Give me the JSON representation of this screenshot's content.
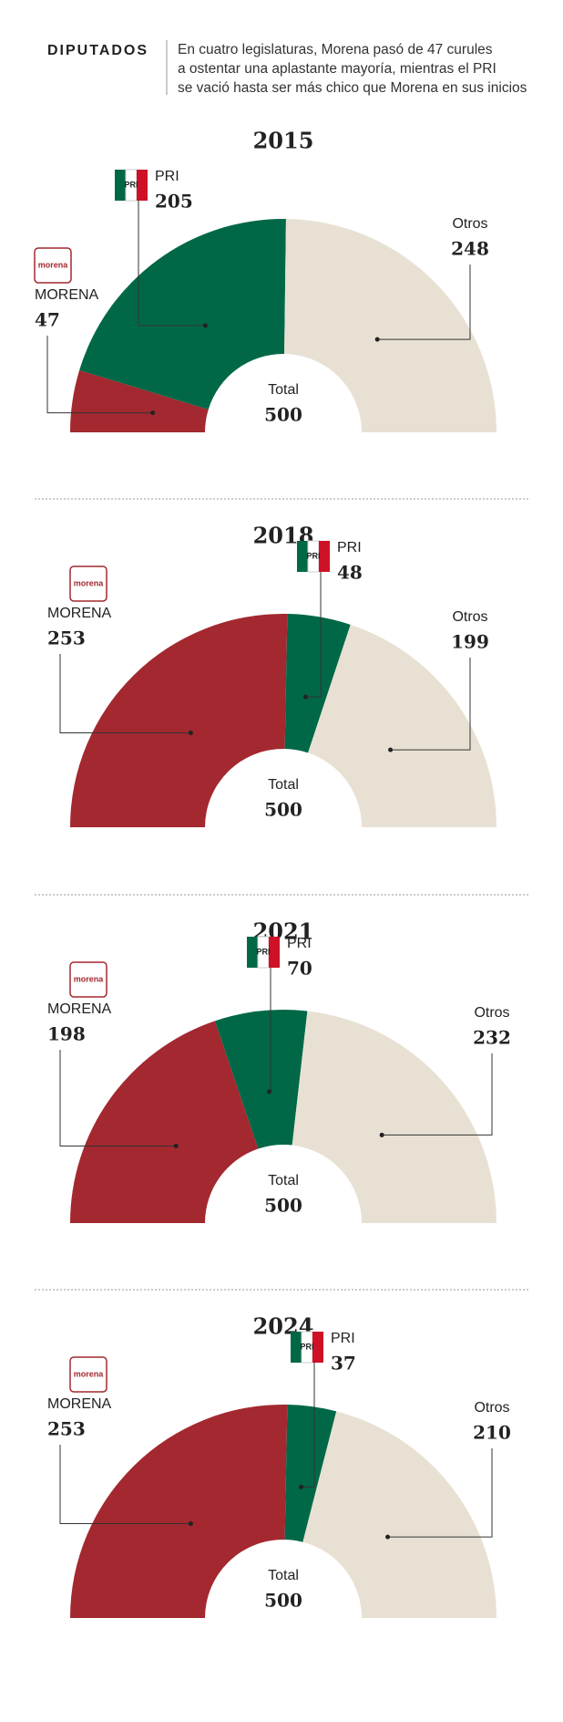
{
  "header": {
    "label": "DIPUTADOS",
    "text": [
      "En cuatro legislaturas, Morena pasó de 47 curules",
      "a ostentar una aplastante mayoría, mientras el PRI",
      "se vació hasta ser más chico que Morena en sus inicios"
    ]
  },
  "logos": {
    "morena": "morena",
    "pri": "PRI"
  },
  "chart_data": [
    {
      "type": "pie",
      "title": "2015",
      "categories": [
        "MORENA",
        "PRI",
        "Otros"
      ],
      "values": [
        47,
        205,
        248
      ],
      "colors": [
        "#a3282f",
        "#006847",
        "#e8e1d3"
      ],
      "total_label": "Total",
      "total": 500
    },
    {
      "type": "pie",
      "title": "2018",
      "categories": [
        "MORENA",
        "PRI",
        "Otros"
      ],
      "values": [
        253,
        48,
        199
      ],
      "colors": [
        "#a3282f",
        "#006847",
        "#e8e1d3"
      ],
      "total_label": "Total",
      "total": 500
    },
    {
      "type": "pie",
      "title": "2021",
      "categories": [
        "MORENA",
        "PRI",
        "Otros"
      ],
      "values": [
        198,
        70,
        232
      ],
      "colors": [
        "#a3282f",
        "#006847",
        "#e8e1d3"
      ],
      "total_label": "Total",
      "total": 500
    },
    {
      "type": "pie",
      "title": "2024",
      "categories": [
        "MORENA",
        "PRI",
        "Otros"
      ],
      "values": [
        253,
        37,
        210
      ],
      "colors": [
        "#a3282f",
        "#006847",
        "#e8e1d3"
      ],
      "total_label": "Total",
      "total": 500
    }
  ]
}
